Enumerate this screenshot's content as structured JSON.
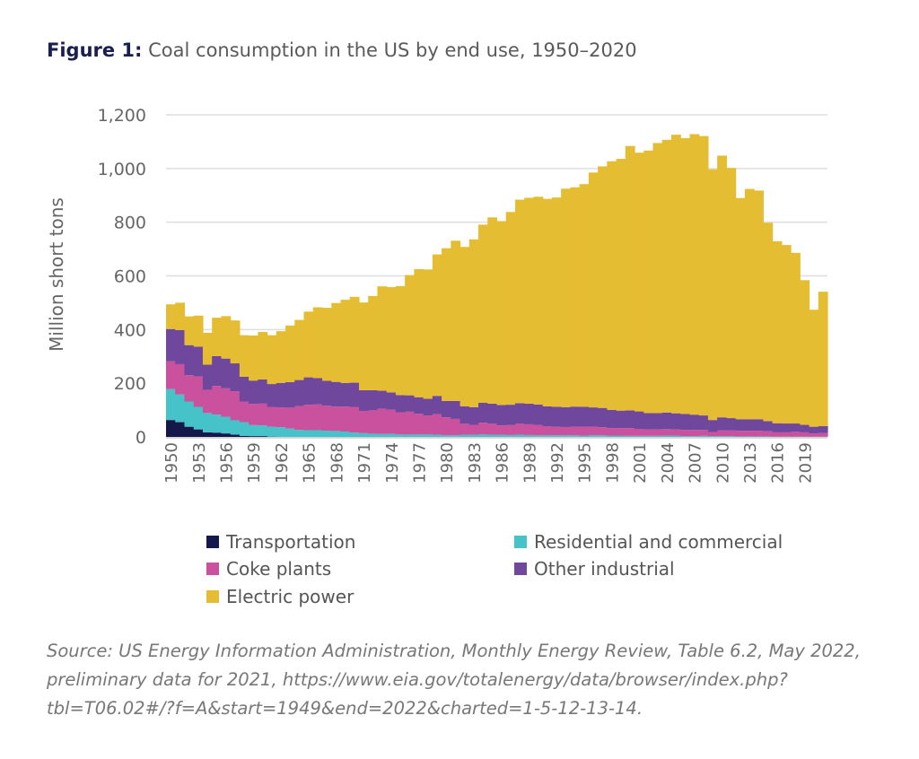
{
  "title": {
    "label": "Figure 1:",
    "text": "Coal consumption in the US by end use, 1950–2020"
  },
  "source": "Source: US Energy Information Administration, Monthly Energy Review, Table 6.2, May 2022, preliminary data for 2021, https://www.eia.gov/totalenergy/data/browser/index.php?tbl=T06.02#/?f=A&start=1949&end=2022&charted=1-5-12-13-14.",
  "chart_data": {
    "type": "bar",
    "stacked": true,
    "ylabel": "Million short tons",
    "ylim": [
      0,
      1200
    ],
    "yticks": [
      0,
      200,
      400,
      600,
      800,
      1000,
      1200
    ],
    "ytick_labels": [
      "0",
      "200",
      "400",
      "600",
      "800",
      "1,000",
      "1,200"
    ],
    "grid": true,
    "legend_position": "bottom",
    "x_start": 1950,
    "x_end": 2021,
    "xtick_labels": [
      "1950",
      "1953",
      "1956",
      "1959",
      "1962",
      "1965",
      "1968",
      "1971",
      "1974",
      "1977",
      "1980",
      "1983",
      "1986",
      "1989",
      "1992",
      "1995",
      "1998",
      "2001",
      "2004",
      "2007",
      "2010",
      "2013",
      "2016",
      "2019"
    ],
    "series": [
      {
        "name": "Transportation",
        "color": "#14184a",
        "values": [
          63,
          55,
          38,
          28,
          17,
          16,
          13,
          9,
          4,
          3,
          3,
          1,
          0,
          0,
          0,
          0,
          0,
          0,
          0,
          0,
          0,
          0,
          0,
          0,
          0,
          0,
          0,
          0,
          0,
          0,
          0,
          0,
          0,
          0,
          0,
          0,
          0,
          0,
          0,
          0,
          0,
          0,
          0,
          0,
          0,
          0,
          0,
          0,
          0,
          0,
          0,
          0,
          0,
          0,
          0,
          0,
          0,
          0,
          0,
          0,
          0,
          0,
          0,
          0,
          0,
          0,
          0,
          0,
          0,
          0,
          0,
          0
        ]
      },
      {
        "name": "Residential and commercial",
        "color": "#45c3c8",
        "values": [
          115,
          103,
          94,
          84,
          72,
          67,
          62,
          53,
          51,
          41,
          40,
          37,
          36,
          31,
          26,
          25,
          25,
          23,
          22,
          20,
          16,
          14,
          12,
          11,
          11,
          9,
          9,
          9,
          9,
          8,
          6,
          6,
          8,
          8,
          9,
          8,
          8,
          7,
          8,
          7,
          6,
          6,
          6,
          6,
          6,
          5,
          6,
          6,
          5,
          5,
          4,
          4,
          4,
          4,
          5,
          5,
          3,
          3,
          4,
          3,
          3,
          3,
          2,
          2,
          2,
          2,
          1,
          1,
          1,
          1,
          1,
          1
        ]
      },
      {
        "name": "Coke plants",
        "color": "#c9519d",
        "values": [
          104,
          113,
          98,
          113,
          86,
          107,
          106,
          108,
          77,
          79,
          81,
          74,
          74,
          78,
          89,
          95,
          96,
          93,
          91,
          93,
          96,
          83,
          87,
          94,
          90,
          83,
          85,
          77,
          71,
          77,
          67,
          61,
          41,
          37,
          44,
          41,
          35,
          37,
          41,
          40,
          39,
          33,
          32,
          31,
          32,
          33,
          32,
          30,
          28,
          28,
          29,
          26,
          24,
          24,
          24,
          23,
          23,
          23,
          22,
          15,
          21,
          21,
          21,
          21,
          21,
          19,
          16,
          16,
          18,
          16,
          12,
          13
        ]
      },
      {
        "name": "Other industrial",
        "color": "#6f479c",
        "values": [
          120,
          127,
          112,
          111,
          94,
          111,
          111,
          104,
          92,
          87,
          90,
          85,
          91,
          95,
          97,
          102,
          98,
          93,
          92,
          88,
          90,
          77,
          75,
          67,
          65,
          64,
          61,
          62,
          62,
          68,
          61,
          67,
          65,
          66,
          74,
          75,
          76,
          76,
          77,
          77,
          76,
          75,
          74,
          74,
          75,
          74,
          72,
          72,
          68,
          65,
          66,
          65,
          61,
          61,
          62,
          60,
          60,
          57,
          54,
          45,
          49,
          46,
          43,
          43,
          43,
          38,
          34,
          33,
          31,
          28,
          25,
          26
        ]
      },
      {
        "name": "Electric power",
        "color": "#e5bd33",
        "values": [
          92,
          102,
          107,
          116,
          119,
          143,
          158,
          160,
          155,
          168,
          177,
          182,
          193,
          211,
          224,
          245,
          264,
          272,
          294,
          310,
          320,
          327,
          351,
          389,
          392,
          406,
          448,
          477,
          482,
          527,
          569,
          597,
          594,
          625,
          664,
          694,
          685,
          718,
          758,
          767,
          774,
          773,
          780,
          814,
          817,
          830,
          875,
          900,
          926,
          938,
          985,
          964,
          978,
          1006,
          1016,
          1038,
          1027,
          1045,
          1041,
          934,
          975,
          932,
          824,
          858,
          852,
          739,
          678,
          665,
          636,
          539,
          436,
          501
        ]
      }
    ]
  }
}
